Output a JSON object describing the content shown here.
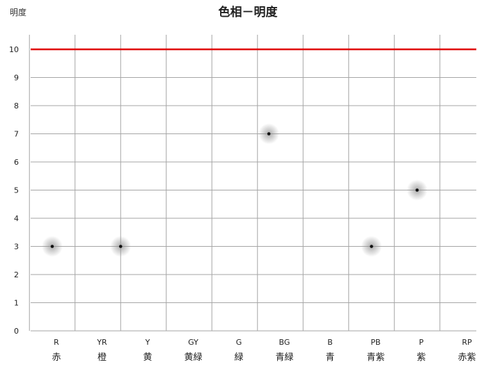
{
  "chart_data": {
    "type": "scatter",
    "title": "色相－明度",
    "ylabel": "明度",
    "ylim": [
      0,
      10
    ],
    "yticks": [
      "0",
      "1",
      "2",
      "3",
      "4",
      "5",
      "6",
      "7",
      "8",
      "9",
      "10"
    ],
    "categories": [
      {
        "code": "R",
        "name": "赤"
      },
      {
        "code": "YR",
        "name": "橙"
      },
      {
        "code": "Y",
        "name": "黄"
      },
      {
        "code": "GY",
        "name": "黄緑"
      },
      {
        "code": "G",
        "name": "緑"
      },
      {
        "code": "BG",
        "name": "青緑"
      },
      {
        "code": "B",
        "name": "青"
      },
      {
        "code": "PB",
        "name": "青紫"
      },
      {
        "code": "P",
        "name": "紫"
      },
      {
        "code": "RP",
        "name": "赤紫"
      }
    ],
    "points": [
      {
        "x": 0.0,
        "y": 3
      },
      {
        "x": 1.5,
        "y": 3
      },
      {
        "x": 4.75,
        "y": 7
      },
      {
        "x": 7.0,
        "y": 3
      },
      {
        "x": 8.0,
        "y": 5
      }
    ],
    "reference_line": {
      "y": 10,
      "color": "#e00000"
    },
    "grid": true,
    "colors": {
      "grid": "#a6a6a6",
      "point": "#111111",
      "glow": "#9a9a9a"
    }
  }
}
